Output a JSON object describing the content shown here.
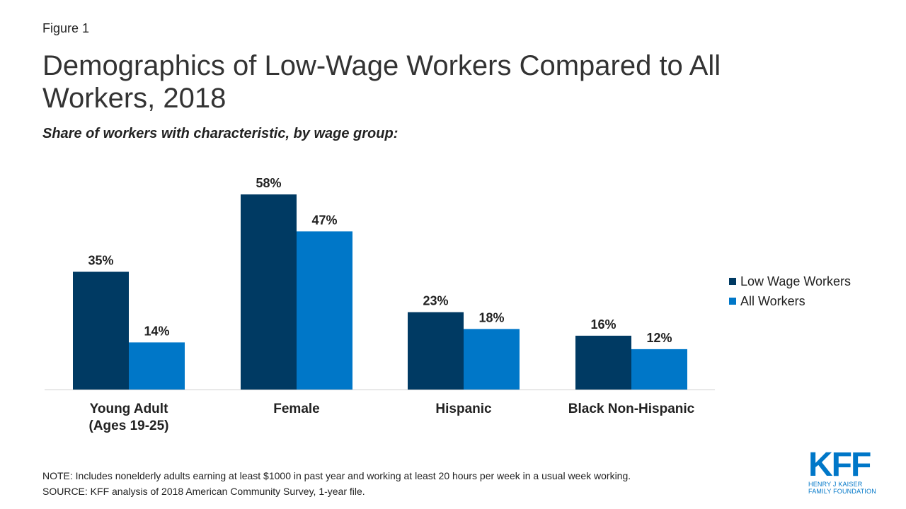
{
  "figure_label": "Figure 1",
  "title": "Demographics of Low-Wage Workers Compared to All Workers, 2018",
  "subtitle": "Share of workers with characteristic, by wage group:",
  "colors": {
    "low_wage": "#003a63",
    "all_workers": "#0077c8",
    "axis": "#d0d0d0",
    "logo": "#0077c8"
  },
  "chart_data": {
    "type": "bar",
    "categories": [
      [
        "Young Adult",
        "(Ages 19-25)"
      ],
      [
        "Female"
      ],
      [
        "Hispanic"
      ],
      [
        "Black Non-Hispanic"
      ]
    ],
    "series": [
      {
        "name": "Low Wage Workers",
        "values": [
          35,
          58,
          23,
          16
        ],
        "labels": [
          "35%",
          "58%",
          "23%",
          "16%"
        ]
      },
      {
        "name": "All Workers",
        "values": [
          14,
          47,
          18,
          12
        ],
        "labels": [
          "14%",
          "47%",
          "18%",
          "12%"
        ]
      }
    ],
    "ylim": [
      0,
      58
    ],
    "legend_position": "right",
    "grid": false,
    "xlabel": "",
    "ylabel": ""
  },
  "legend": {
    "items": [
      "Low Wage Workers",
      "All Workers"
    ]
  },
  "notes": {
    "note": "NOTE: Includes nonelderly adults earning at least $1000 in past year and working at least 20 hours per week in a usual week working.",
    "source": "SOURCE: KFF analysis of 2018 American Community Survey, 1-year file."
  },
  "logo": {
    "mark": "KFF",
    "line1": "HENRY J KAISER",
    "line2": "FAMILY FOUNDATION"
  }
}
